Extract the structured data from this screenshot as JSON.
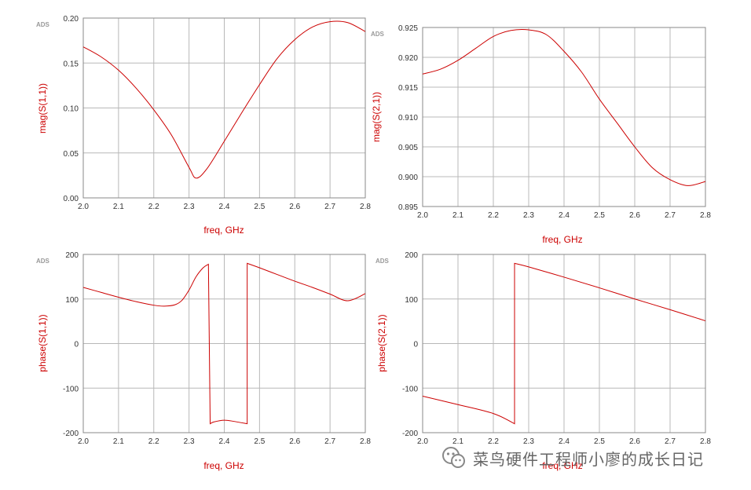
{
  "ads_label": "ADS",
  "watermark": {
    "text": "菜鸟硬件工程师小廖的成长日记",
    "icon": "wechat-icon"
  },
  "colors": {
    "curve": "#cc0000",
    "axis_label": "#cc0000",
    "grid": "#b8b8b8"
  },
  "chart_data": [
    {
      "type": "line",
      "title": "",
      "xlabel": "freq, GHz",
      "ylabel": "mag(S(1,1))",
      "xlim": [
        2.0,
        2.8
      ],
      "ylim": [
        0.0,
        0.2
      ],
      "xticks": [
        "2.0",
        "2.1",
        "2.2",
        "2.3",
        "2.4",
        "2.5",
        "2.6",
        "2.7",
        "2.8"
      ],
      "yticks": [
        "0.00",
        "0.05",
        "0.10",
        "0.15",
        "0.20"
      ],
      "grid": true,
      "series": [
        {
          "name": "mag(S(1,1))",
          "x": [
            2.0,
            2.05,
            2.1,
            2.15,
            2.2,
            2.25,
            2.3,
            2.32,
            2.35,
            2.4,
            2.45,
            2.5,
            2.55,
            2.6,
            2.65,
            2.7,
            2.75,
            2.8
          ],
          "y": [
            0.168,
            0.157,
            0.142,
            0.122,
            0.098,
            0.07,
            0.034,
            0.022,
            0.032,
            0.063,
            0.095,
            0.126,
            0.155,
            0.176,
            0.19,
            0.196,
            0.195,
            0.185
          ]
        }
      ]
    },
    {
      "type": "line",
      "title": "",
      "xlabel": "freq, GHz",
      "ylabel": "mag(S(2,1))",
      "xlim": [
        2.0,
        2.8
      ],
      "ylim": [
        0.895,
        0.925
      ],
      "xticks": [
        "2.0",
        "2.1",
        "2.2",
        "2.3",
        "2.4",
        "2.5",
        "2.6",
        "2.7",
        "2.8"
      ],
      "yticks": [
        "0.895",
        "0.900",
        "0.905",
        "0.910",
        "0.915",
        "0.920",
        "0.925"
      ],
      "grid": true,
      "series": [
        {
          "name": "mag(S(2,1))",
          "x": [
            2.0,
            2.05,
            2.1,
            2.15,
            2.2,
            2.25,
            2.3,
            2.35,
            2.4,
            2.45,
            2.5,
            2.55,
            2.6,
            2.65,
            2.7,
            2.75,
            2.8
          ],
          "y": [
            0.9172,
            0.918,
            0.9195,
            0.9215,
            0.9235,
            0.9245,
            0.9246,
            0.9238,
            0.921,
            0.9175,
            0.913,
            0.909,
            0.905,
            0.9015,
            0.8995,
            0.8985,
            0.8992
          ]
        }
      ]
    },
    {
      "type": "line",
      "title": "",
      "xlabel": "freq, GHz",
      "ylabel": "phase(S(1,1))",
      "xlim": [
        2.0,
        2.8
      ],
      "ylim": [
        -200,
        200
      ],
      "xticks": [
        "2.0",
        "2.1",
        "2.2",
        "2.3",
        "2.4",
        "2.5",
        "2.6",
        "2.7",
        "2.8"
      ],
      "yticks": [
        "-200",
        "-100",
        "0",
        "100",
        "200"
      ],
      "grid": true,
      "series": [
        {
          "name": "phase(S(1,1))",
          "x": [
            2.0,
            2.05,
            2.1,
            2.15,
            2.2,
            2.23,
            2.26,
            2.28,
            2.3,
            2.32,
            2.34,
            2.355,
            2.36,
            2.36,
            2.37,
            2.4,
            2.43,
            2.465,
            2.465,
            2.5,
            2.55,
            2.6,
            2.65,
            2.7,
            2.75,
            2.8
          ],
          "y": [
            126,
            115,
            104,
            94,
            86,
            84,
            87,
            97,
            120,
            150,
            170,
            178,
            -180,
            -180,
            -176,
            -172,
            -175,
            -180,
            180,
            170,
            155,
            140,
            126,
            111,
            96,
            112
          ]
        }
      ]
    },
    {
      "type": "line",
      "title": "",
      "xlabel": "freq, GHz",
      "ylabel": "phase(S(2,1))",
      "xlim": [
        2.0,
        2.8
      ],
      "ylim": [
        -200,
        200
      ],
      "xticks": [
        "2.0",
        "2.1",
        "2.2",
        "2.3",
        "2.4",
        "2.5",
        "2.6",
        "2.7",
        "2.8"
      ],
      "yticks": [
        "-200",
        "-100",
        "0",
        "100",
        "200"
      ],
      "grid": true,
      "series": [
        {
          "name": "phase(S(2,1))",
          "x": [
            2.0,
            2.1,
            2.2,
            2.26,
            2.26,
            2.3,
            2.4,
            2.5,
            2.6,
            2.7,
            2.8
          ],
          "y": [
            -118,
            -137,
            -157,
            -180,
            180,
            172,
            149,
            125,
            100,
            76,
            51
          ]
        }
      ]
    }
  ]
}
